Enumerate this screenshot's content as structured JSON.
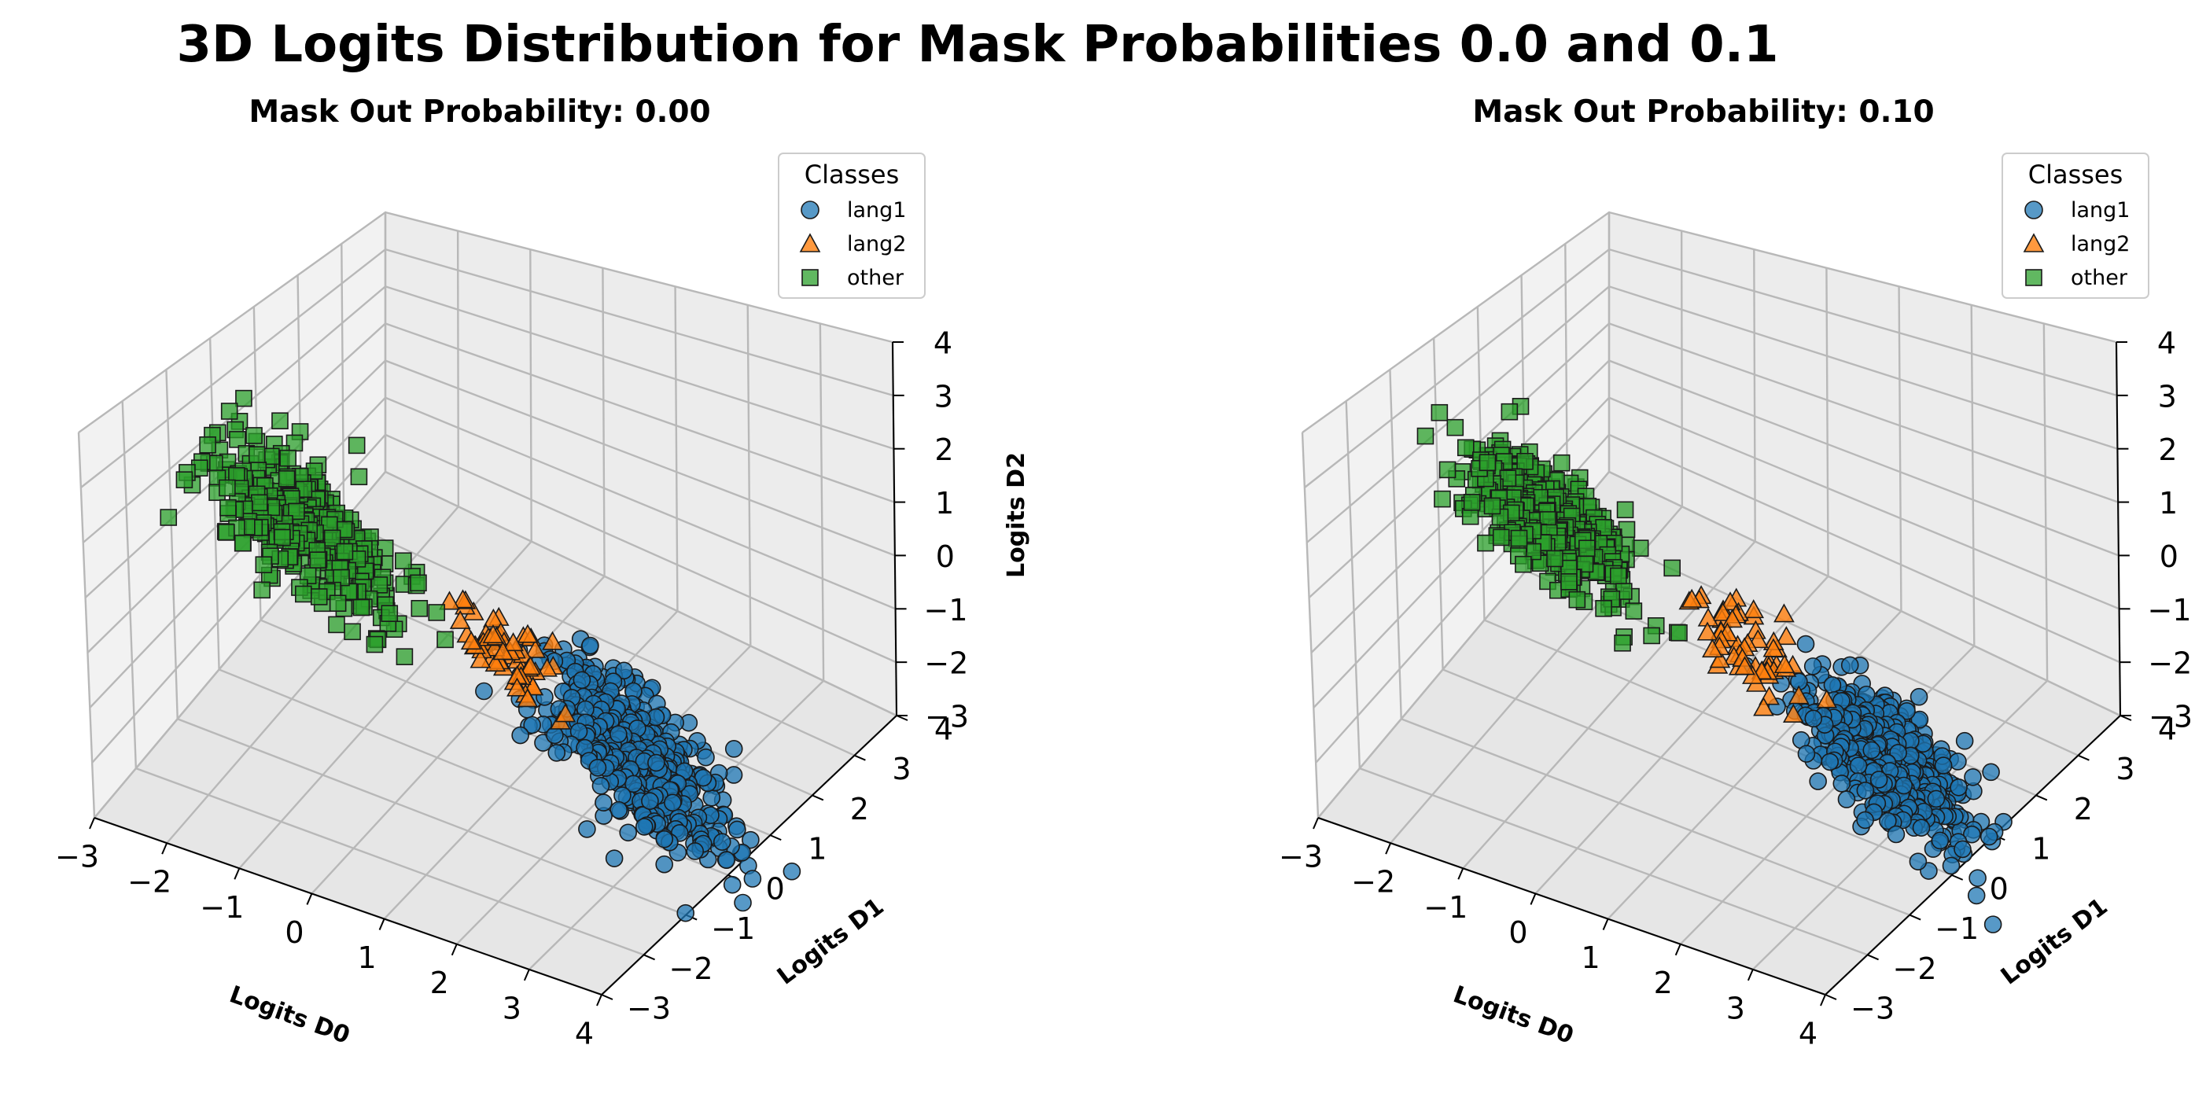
{
  "figure": {
    "title": "3D Logits Distribution for Mask Probabilities 0.0 and 0.1"
  },
  "chart_data": [
    {
      "type": "scatter",
      "subtype": "3d",
      "title": "Mask Out Probability: 0.00",
      "xlabel": "Logits D0",
      "ylabel": "Logits D1",
      "zlabel": "Logits D2",
      "xlim": [
        -3,
        4
      ],
      "ylim": [
        -3,
        4
      ],
      "zlim": [
        -3,
        4
      ],
      "xticks": [
        "−3",
        "−2",
        "−1",
        "0",
        "1",
        "2",
        "3",
        "4"
      ],
      "yticks": [
        "−3",
        "−2",
        "−1",
        "0",
        "1",
        "2",
        "3",
        "4"
      ],
      "zticks": [
        "−3",
        "−2",
        "−1",
        "0",
        "1",
        "2",
        "3",
        "4"
      ],
      "grid": true,
      "legend": {
        "title": "Classes",
        "placement": "top-right"
      },
      "series": [
        {
          "name": "lang1",
          "color": "#1f77b4",
          "marker": "circle",
          "center": [
            2.6,
            0.3,
            -1.8
          ],
          "spread": [
            0.6,
            0.5,
            0.5
          ]
        },
        {
          "name": "lang2",
          "color": "#ff7f0e",
          "marker": "triangle",
          "center": [
            0.9,
            0.2,
            -0.6
          ],
          "spread": [
            0.35,
            0.3,
            0.3
          ]
        },
        {
          "name": "other",
          "color": "#2ca02c",
          "marker": "square",
          "center": [
            -1.4,
            -0.5,
            1.2
          ],
          "spread": [
            0.6,
            0.5,
            0.5
          ]
        }
      ]
    },
    {
      "type": "scatter",
      "subtype": "3d",
      "title": "Mask Out Probability: 0.10",
      "xlabel": "Logits D0",
      "ylabel": "Logits D1",
      "zlabel": "",
      "xlim": [
        -3,
        4
      ],
      "ylim": [
        -3,
        4
      ],
      "zlim": [
        -3,
        4
      ],
      "xticks": [
        "−3",
        "−2",
        "−1",
        "0",
        "1",
        "2",
        "3",
        "4"
      ],
      "yticks": [
        "−3",
        "−2",
        "−1",
        "0",
        "1",
        "2",
        "3",
        "4"
      ],
      "zticks": [
        "−3",
        "−2",
        "−1",
        "0",
        "1",
        "2",
        "3",
        "4"
      ],
      "grid": true,
      "legend": {
        "title": "Classes",
        "placement": "top-right"
      },
      "series": [
        {
          "name": "lang1",
          "color": "#1f77b4",
          "marker": "circle",
          "center": [
            2.8,
            0.6,
            -2.0
          ],
          "spread": [
            0.5,
            0.45,
            0.45
          ]
        },
        {
          "name": "lang2",
          "color": "#ff7f0e",
          "marker": "triangle",
          "center": [
            1.0,
            0.3,
            -0.5
          ],
          "spread": [
            0.3,
            0.3,
            0.3
          ]
        },
        {
          "name": "other",
          "color": "#2ca02c",
          "marker": "square",
          "center": [
            -1.3,
            -0.3,
            1.3
          ],
          "spread": [
            0.55,
            0.45,
            0.45
          ]
        }
      ]
    }
  ]
}
